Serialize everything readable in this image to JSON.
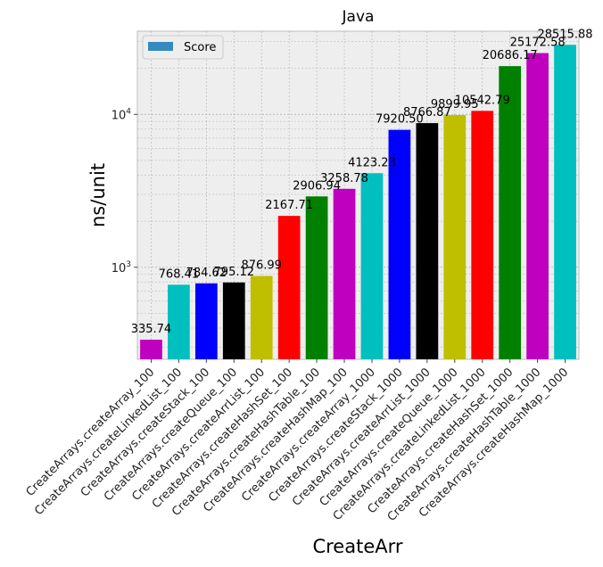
{
  "chart_data": {
    "type": "bar",
    "title": "Java",
    "xlabel": "CreateArr",
    "ylabel": "ns/unit",
    "yscale": "log",
    "ylim": [
      250,
      35000
    ],
    "grid": true,
    "legend": {
      "placement": "top-left",
      "entries": [
        "Score"
      ],
      "swatch_color": "#348ABD"
    },
    "categories": [
      "CreateArrays.createArray_100",
      "CreateArrays.createLinkedList_100",
      "CreateArrays.createStack_100",
      "CreateArrays.createQueue_100",
      "CreateArrays.createArrList_100",
      "CreateArrays.createHashSet_100",
      "CreateArrays.createHashTable_100",
      "CreateArrays.createHashMap_100",
      "CreateArrays.createArray_1000",
      "CreateArrays.createStack_1000",
      "CreateArrays.createArrList_1000",
      "CreateArrays.createQueue_1000",
      "CreateArrays.createLinkedList_1000",
      "CreateArrays.createHashSet_1000",
      "CreateArrays.createHashTable_1000",
      "CreateArrays.createHashMap_1000"
    ],
    "values": [
      335.74,
      768.41,
      784.62,
      795.12,
      876.99,
      2167.71,
      2906.94,
      3258.78,
      4123.23,
      7920.5,
      8766.87,
      9899.95,
      10542.79,
      20686.17,
      25172.58,
      28515.88
    ],
    "value_labels": [
      "335.74",
      "768.41",
      "784.62",
      "795.12",
      "876.99",
      "2167.71",
      "2906.94",
      "3258.78",
      "4123.23",
      "7920.50",
      "8766.87",
      "9899.95",
      "10542.79",
      "20686.17",
      "25172.58",
      "28515.88"
    ],
    "colors": [
      "#bf00bf",
      "#00bfbf",
      "#0000ff",
      "#000000",
      "#bfbf00",
      "#ff0000",
      "#008000",
      "#bf00bf",
      "#00bfbf",
      "#0000ff",
      "#000000",
      "#bfbf00",
      "#ff0000",
      "#008000",
      "#bf00bf",
      "#00bfbf"
    ],
    "ytick_labels": [
      {
        "value": 1000,
        "base": "10",
        "exp": "3"
      },
      {
        "value": 10000,
        "base": "10",
        "exp": "4"
      }
    ]
  }
}
